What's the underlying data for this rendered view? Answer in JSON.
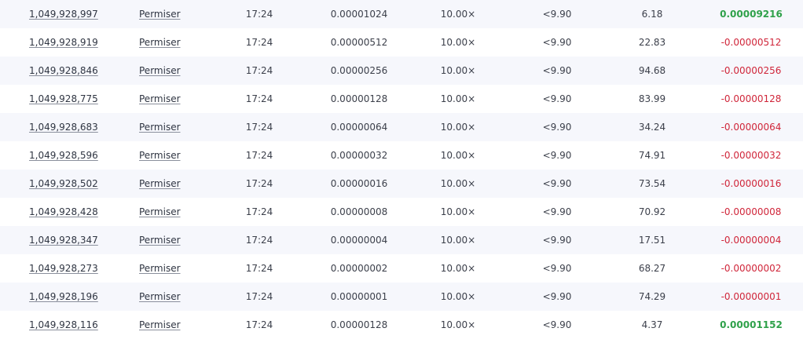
{
  "colors": {
    "row_alt": "#f6f7fc",
    "profit_positive": "#2fa14a",
    "profit_negative": "#d0263a"
  },
  "rows": [
    {
      "bet_id": "1,049,928,997",
      "user": "Permiser",
      "time": "17:24",
      "bet_amount": "0.00001024",
      "payout": "10.00×",
      "target": "<9.90",
      "roll": "6.18",
      "profit": "0.00009216",
      "win": true
    },
    {
      "bet_id": "1,049,928,919",
      "user": "Permiser",
      "time": "17:24",
      "bet_amount": "0.00000512",
      "payout": "10.00×",
      "target": "<9.90",
      "roll": "22.83",
      "profit": "-0.00000512",
      "win": false
    },
    {
      "bet_id": "1,049,928,846",
      "user": "Permiser",
      "time": "17:24",
      "bet_amount": "0.00000256",
      "payout": "10.00×",
      "target": "<9.90",
      "roll": "94.68",
      "profit": "-0.00000256",
      "win": false
    },
    {
      "bet_id": "1,049,928,775",
      "user": "Permiser",
      "time": "17:24",
      "bet_amount": "0.00000128",
      "payout": "10.00×",
      "target": "<9.90",
      "roll": "83.99",
      "profit": "-0.00000128",
      "win": false
    },
    {
      "bet_id": "1,049,928,683",
      "user": "Permiser",
      "time": "17:24",
      "bet_amount": "0.00000064",
      "payout": "10.00×",
      "target": "<9.90",
      "roll": "34.24",
      "profit": "-0.00000064",
      "win": false
    },
    {
      "bet_id": "1,049,928,596",
      "user": "Permiser",
      "time": "17:24",
      "bet_amount": "0.00000032",
      "payout": "10.00×",
      "target": "<9.90",
      "roll": "74.91",
      "profit": "-0.00000032",
      "win": false
    },
    {
      "bet_id": "1,049,928,502",
      "user": "Permiser",
      "time": "17:24",
      "bet_amount": "0.00000016",
      "payout": "10.00×",
      "target": "<9.90",
      "roll": "73.54",
      "profit": "-0.00000016",
      "win": false
    },
    {
      "bet_id": "1,049,928,428",
      "user": "Permiser",
      "time": "17:24",
      "bet_amount": "0.00000008",
      "payout": "10.00×",
      "target": "<9.90",
      "roll": "70.92",
      "profit": "-0.00000008",
      "win": false
    },
    {
      "bet_id": "1,049,928,347",
      "user": "Permiser",
      "time": "17:24",
      "bet_amount": "0.00000004",
      "payout": "10.00×",
      "target": "<9.90",
      "roll": "17.51",
      "profit": "-0.00000004",
      "win": false
    },
    {
      "bet_id": "1,049,928,273",
      "user": "Permiser",
      "time": "17:24",
      "bet_amount": "0.00000002",
      "payout": "10.00×",
      "target": "<9.90",
      "roll": "68.27",
      "profit": "-0.00000002",
      "win": false
    },
    {
      "bet_id": "1,049,928,196",
      "user": "Permiser",
      "time": "17:24",
      "bet_amount": "0.00000001",
      "payout": "10.00×",
      "target": "<9.90",
      "roll": "74.29",
      "profit": "-0.00000001",
      "win": false
    },
    {
      "bet_id": "1,049,928,116",
      "user": "Permiser",
      "time": "17:24",
      "bet_amount": "0.00000128",
      "payout": "10.00×",
      "target": "<9.90",
      "roll": "4.37",
      "profit": "0.00001152",
      "win": true
    }
  ]
}
